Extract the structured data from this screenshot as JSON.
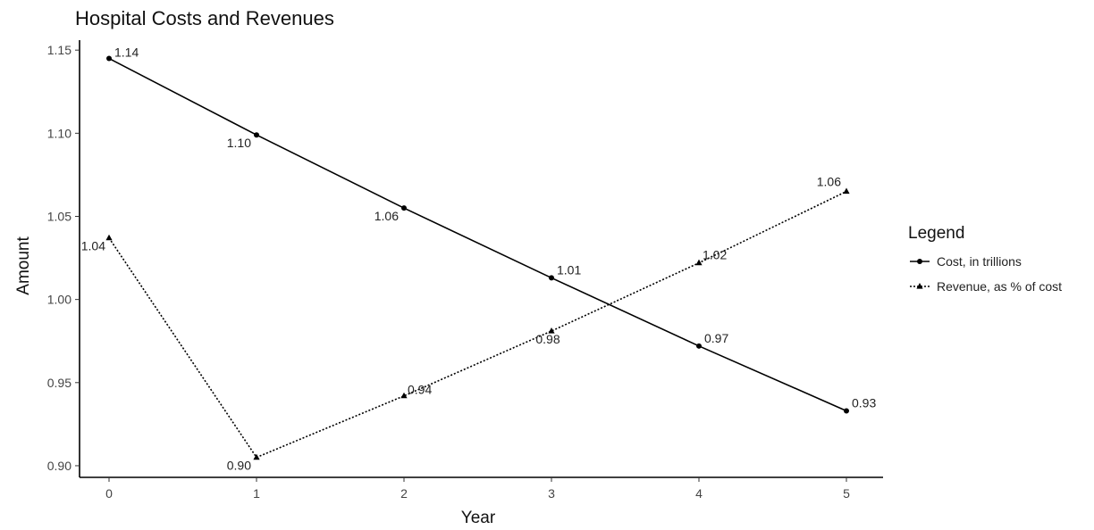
{
  "chart_data": {
    "type": "line",
    "title": "Hospital Costs and Revenues",
    "xlabel": "Year",
    "ylabel": "Amount",
    "x": [
      0,
      1,
      2,
      3,
      4,
      5
    ],
    "xlim": [
      -0.2,
      5.2
    ],
    "ylim": [
      0.893,
      1.156
    ],
    "xticks": [
      "0",
      "1",
      "2",
      "3",
      "4",
      "5"
    ],
    "yticks": [
      "0.90",
      "0.95",
      "1.00",
      "1.05",
      "1.10",
      "1.15"
    ],
    "ytick_values": [
      0.9,
      0.95,
      1.0,
      1.05,
      1.1,
      1.15
    ],
    "grid": false,
    "legend": {
      "title": "Legend",
      "position": "right"
    },
    "series": [
      {
        "name": "Cost, in trillions",
        "values": [
          1.145,
          1.099,
          1.055,
          1.013,
          0.972,
          0.933
        ],
        "labels": [
          "1.14",
          "1.10",
          "1.06",
          "1.01",
          "0.97",
          "0.93"
        ],
        "marker": "circle",
        "linestyle": "solid",
        "color": "#000000"
      },
      {
        "name": "Revenue, as % of cost",
        "values": [
          1.037,
          0.905,
          0.942,
          0.981,
          1.022,
          1.065
        ],
        "labels": [
          "1.04",
          "0.90",
          "0.94",
          "0.98",
          "1.02",
          "1.06"
        ],
        "marker": "triangle",
        "linestyle": "dotted",
        "color": "#000000"
      }
    ]
  }
}
